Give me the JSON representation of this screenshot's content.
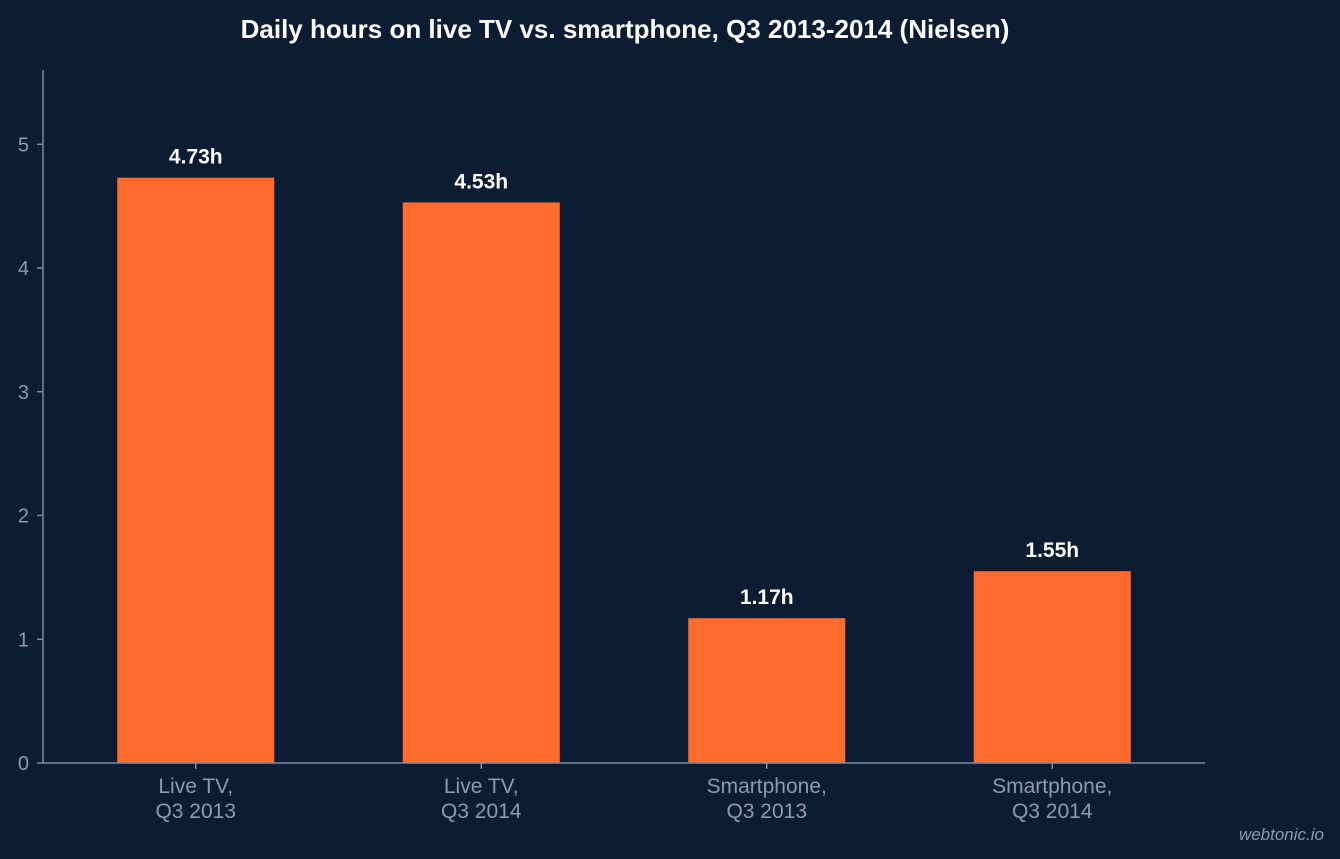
{
  "colors": {
    "background": "#0c1c33",
    "bar": "#ff6b2c",
    "axis": "#7d8ba0",
    "tick_text": "#8d9bb0",
    "label_text": "#ffffff"
  },
  "watermark": "webtonic.io",
  "chart_data": {
    "type": "bar",
    "title": "Daily hours on live TV vs. smartphone, Q3 2013-2014 (Nielsen)",
    "xlabel": "",
    "ylabel": "",
    "categories": [
      [
        "Live TV,",
        "Q3 2013"
      ],
      [
        "Live TV,",
        "Q3 2014"
      ],
      [
        "Smartphone,",
        "Q3 2013"
      ],
      [
        "Smartphone,",
        "Q3 2014"
      ]
    ],
    "values": [
      4.73,
      4.53,
      1.17,
      1.55
    ],
    "data_labels": [
      "4.73h",
      "4.53h",
      "1.17h",
      "1.55h"
    ],
    "ylim": [
      0,
      5.6
    ],
    "yticks": [
      0,
      1,
      2,
      3,
      4,
      5
    ],
    "grid": false,
    "legend": "none"
  }
}
